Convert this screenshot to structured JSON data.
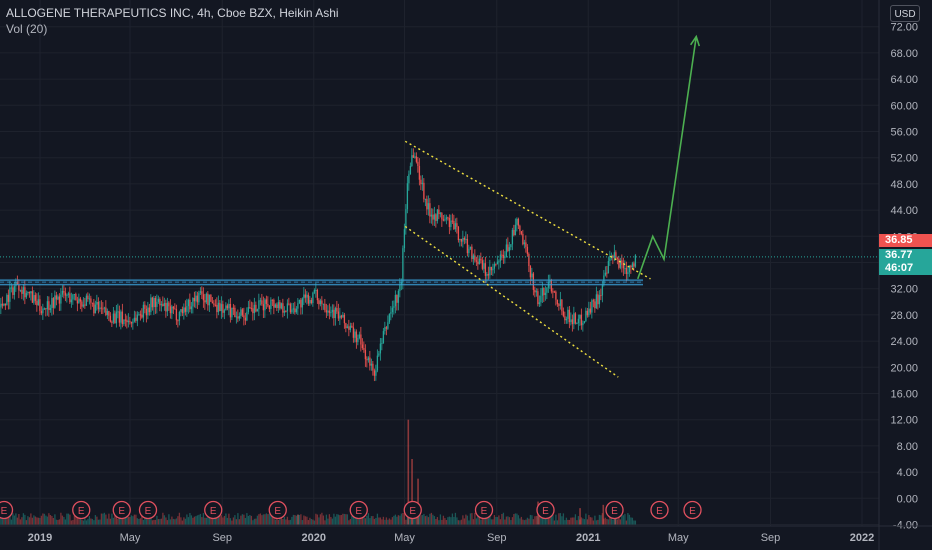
{
  "legend": {
    "title": "ALLOGENE THERAPEUTICS INC, 4h, Cboe BZX, Heikin Ashi",
    "volume": "Vol (20)"
  },
  "axis": {
    "currency_button": "USD"
  },
  "badges": {
    "last_price": "36.85",
    "close_price": "36.77",
    "countdown": "46:07"
  },
  "colors": {
    "background": "#131722",
    "bull": "#26a69a",
    "bear": "#ef5350",
    "support_zone": "#2a7fb4",
    "channel": "#f0e040",
    "arrow": "#4caf50"
  },
  "chart_data": {
    "type": "candlestick",
    "style": "Heikin Ashi",
    "symbol": "ALLOGENE THERAPEUTICS INC",
    "interval": "4h",
    "exchange": "Cboe BZX",
    "ylim": [
      -4,
      72
    ],
    "y_ticks": [
      "-4.00",
      "0.00",
      "4.00",
      "8.00",
      "12.00",
      "16.00",
      "20.00",
      "24.00",
      "28.00",
      "32.00",
      "36.00",
      "40.00",
      "44.00",
      "48.00",
      "52.00",
      "56.00",
      "60.00",
      "64.00",
      "68.00",
      "72.00"
    ],
    "x_ticks": [
      "2019",
      "May",
      "Sep",
      "2020",
      "May",
      "Sep",
      "2021",
      "May",
      "Sep",
      "2022"
    ],
    "price_path": [
      {
        "x": "2018-11-01",
        "y": 28
      },
      {
        "x": "2018-12-01",
        "y": 33
      },
      {
        "x": "2019-01-01",
        "y": 29
      },
      {
        "x": "2019-02-01",
        "y": 31
      },
      {
        "x": "2019-03-01",
        "y": 30
      },
      {
        "x": "2019-04-01",
        "y": 28
      },
      {
        "x": "2019-05-01",
        "y": 27
      },
      {
        "x": "2019-06-01",
        "y": 30
      },
      {
        "x": "2019-07-01",
        "y": 28
      },
      {
        "x": "2019-08-01",
        "y": 31
      },
      {
        "x": "2019-09-01",
        "y": 29
      },
      {
        "x": "2019-10-01",
        "y": 28
      },
      {
        "x": "2019-11-01",
        "y": 30
      },
      {
        "x": "2019-12-01",
        "y": 29
      },
      {
        "x": "2020-01-01",
        "y": 31
      },
      {
        "x": "2020-02-01",
        "y": 28
      },
      {
        "x": "2020-03-01",
        "y": 24
      },
      {
        "x": "2020-03-20",
        "y": 19
      },
      {
        "x": "2020-04-10",
        "y": 28
      },
      {
        "x": "2020-04-25",
        "y": 32
      },
      {
        "x": "2020-05-05",
        "y": 50
      },
      {
        "x": "2020-05-12",
        "y": 53
      },
      {
        "x": "2020-06-01",
        "y": 44
      },
      {
        "x": "2020-07-01",
        "y": 42
      },
      {
        "x": "2020-08-01",
        "y": 37
      },
      {
        "x": "2020-08-20",
        "y": 34
      },
      {
        "x": "2020-09-10",
        "y": 37
      },
      {
        "x": "2020-09-28",
        "y": 42
      },
      {
        "x": "2020-10-10",
        "y": 37
      },
      {
        "x": "2020-10-25",
        "y": 30
      },
      {
        "x": "2020-11-10",
        "y": 33
      },
      {
        "x": "2020-12-01",
        "y": 28
      },
      {
        "x": "2020-12-20",
        "y": 27
      },
      {
        "x": "2021-01-15",
        "y": 31
      },
      {
        "x": "2021-02-01",
        "y": 37
      },
      {
        "x": "2021-02-20",
        "y": 35
      },
      {
        "x": "2021-03-05",
        "y": 36.8
      }
    ],
    "support_zone": {
      "low": 32.5,
      "high": 33.5
    },
    "support_lines": [
      33.3,
      32.6
    ],
    "last_price": 36.85,
    "channel_upper": [
      {
        "x": "2020-05-02",
        "y": 54.5
      },
      {
        "x": "2021-03-25",
        "y": 33.5
      }
    ],
    "channel_lower": [
      {
        "x": "2020-05-02",
        "y": 41.5
      },
      {
        "x": "2021-02-10",
        "y": 18.5
      }
    ],
    "projection_arrow": [
      {
        "x": "2021-03-08",
        "y": 33.5
      },
      {
        "x": "2021-03-28",
        "y": 40
      },
      {
        "x": "2021-04-12",
        "y": 36.5
      },
      {
        "x": "2021-05-25",
        "y": 70.5
      }
    ],
    "earnings_markers": [
      "2018-11-14",
      "2019-02-25",
      "2019-04-20",
      "2019-05-25",
      "2019-08-20",
      "2019-11-14",
      "2020-03-01",
      "2020-05-12",
      "2020-08-15",
      "2020-11-05",
      "2021-02-05",
      "2021-04-06",
      "2021-05-20"
    ],
    "earnings_label": "E",
    "volume_spikes": [
      {
        "x": "2020-05-05",
        "v": 16
      },
      {
        "x": "2020-05-10",
        "v": 10
      },
      {
        "x": "2020-05-18",
        "v": 7
      },
      {
        "x": "2019-12-10",
        "v": 1.5
      },
      {
        "x": "2020-10-25",
        "v": 3.5
      },
      {
        "x": "2020-12-20",
        "v": 2.5
      },
      {
        "x": "2021-01-20",
        "v": 3
      },
      {
        "x": "2021-02-05",
        "v": 2
      }
    ]
  }
}
